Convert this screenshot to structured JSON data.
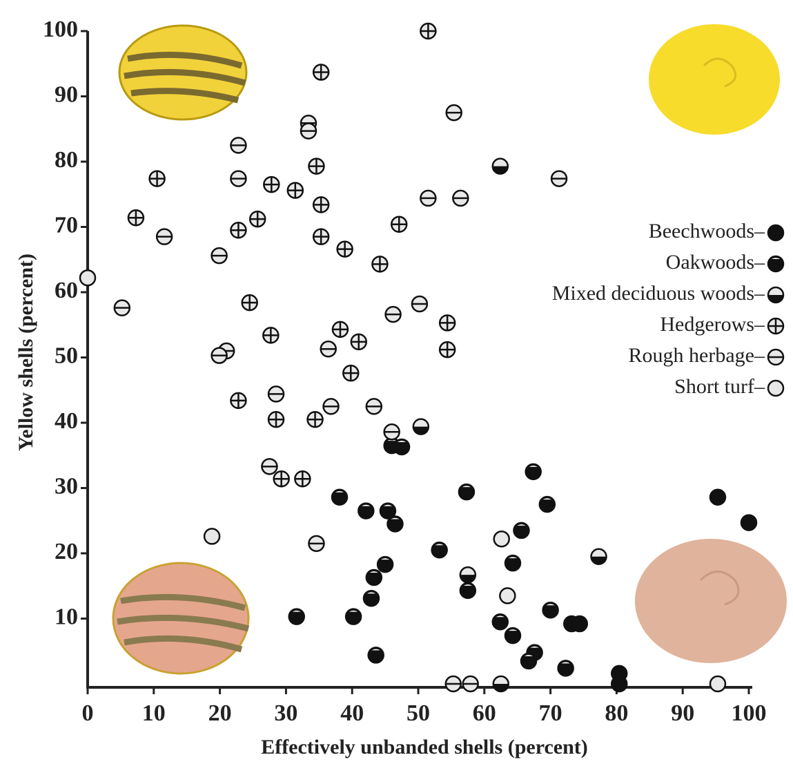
{
  "chart_data": {
    "type": "scatter",
    "x_label": "Effectively unbanded shells (percent)",
    "y_label": "Yellow shells (percent)",
    "xlim": [
      0,
      100
    ],
    "ylim": [
      0,
      100
    ],
    "xticks": [
      0,
      10,
      20,
      30,
      40,
      50,
      60,
      70,
      80,
      90,
      100
    ],
    "yticks": [
      10,
      20,
      30,
      40,
      50,
      60,
      70,
      80,
      90,
      100
    ],
    "series": [
      {
        "name": "Beechwoods–",
        "color": "#111111",
        "marker": "filled",
        "x": [
          100,
          73.2,
          74.4,
          80.4,
          80.4,
          95.3
        ],
        "values": [
          24.7,
          9.2,
          9.2,
          1.6,
          0,
          28.6
        ]
      },
      {
        "name": "Oakwoods–",
        "color": "#111111",
        "marker": "cap",
        "x": [
          46,
          47.5,
          67.4,
          57.3,
          38.1,
          69.5,
          42.1,
          45.4,
          46.5,
          65.6,
          53.2,
          45,
          64.3,
          43.3,
          57.5,
          42.9,
          31.6,
          40.2,
          70,
          62.4,
          64.3,
          43.6,
          67.6,
          66.7,
          72.3
        ],
        "values": [
          36.5,
          36.3,
          32.5,
          29.4,
          28.6,
          27.5,
          26.5,
          26.5,
          24.5,
          23.5,
          20.5,
          18.3,
          18.5,
          16.3,
          14.3,
          13.1,
          10.3,
          10.3,
          11.3,
          9.5,
          7.4,
          4.4,
          4.8,
          3.5,
          2.4
        ]
      },
      {
        "name": "Mixed deciduous woods–",
        "color": "#111111",
        "marker": "half",
        "x": [
          62.4,
          50.4,
          77.3,
          62.5,
          57.5
        ],
        "values": [
          79.3,
          39.4,
          19.5,
          0,
          16.7
        ]
      },
      {
        "name": "Hedgerows–",
        "color": "#111111",
        "marker": "cross",
        "x": [
          51.5,
          35.3,
          34.6,
          10.5,
          27.8,
          31.4,
          35.3,
          7.3,
          25.7,
          22.8,
          35.3,
          47.1,
          38.9,
          44.2,
          24.5,
          54.4,
          38.2,
          27.7,
          41,
          54.4,
          39.8,
          22.8,
          28.5,
          34.4,
          29.3,
          32.5
        ],
        "values": [
          100,
          93.7,
          79.3,
          77.4,
          76.5,
          75.6,
          73.4,
          71.4,
          71.2,
          69.5,
          68.5,
          70.4,
          66.6,
          64.3,
          58.4,
          55.3,
          54.3,
          53.4,
          52.4,
          51.2,
          47.6,
          43.4,
          40.5,
          40.5,
          31.4,
          31.4
        ]
      },
      {
        "name": "Rough herbage–",
        "color": "#111111",
        "marker": "bar",
        "x": [
          55.4,
          33.4,
          33.4,
          22.8,
          22.8,
          71.3,
          51.5,
          56.4,
          11.6,
          19.9,
          5.2,
          50.2,
          46.2,
          36.4,
          21,
          19.9,
          28.5,
          36.8,
          43.3,
          46,
          27.5,
          34.6,
          55.3,
          57.9
        ],
        "values": [
          87.5,
          85.9,
          84.7,
          82.5,
          77.4,
          77.4,
          74.4,
          74.4,
          68.5,
          65.6,
          57.6,
          58.2,
          56.6,
          51.3,
          51,
          50.3,
          44.4,
          42.5,
          42.5,
          38.6,
          33.3,
          21.5,
          0,
          0
        ]
      },
      {
        "name": "Short turf–",
        "color": "#111111",
        "marker": "open",
        "x": [
          0,
          18.8,
          62.6,
          63.5,
          95.3
        ],
        "values": [
          62.2,
          22.6,
          22.2,
          13.5,
          0
        ]
      }
    ]
  }
}
